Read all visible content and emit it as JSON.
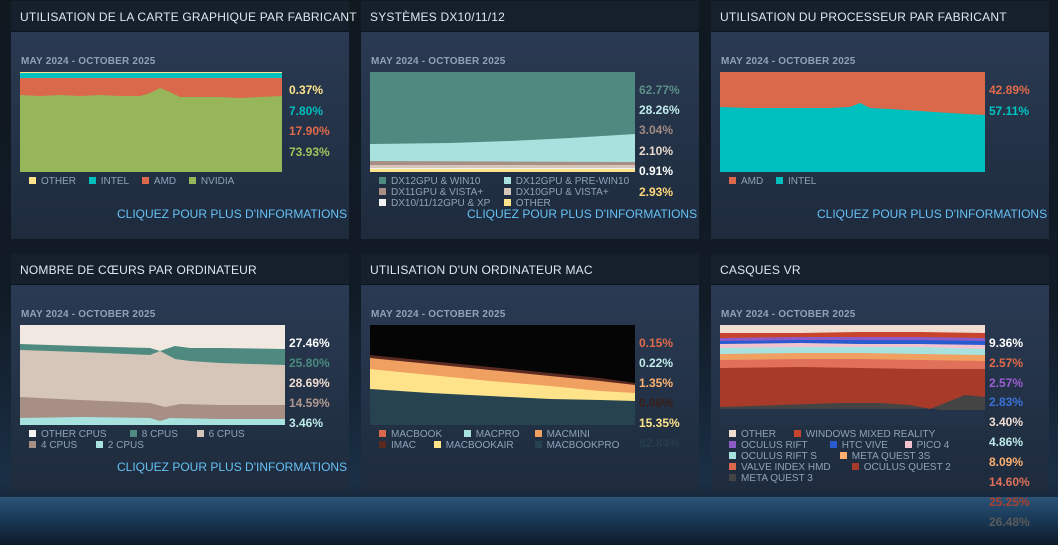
{
  "panels": [
    {
      "title": "UTILISATION DE LA CARTE GRAPHIQUE PAR FABRICANT",
      "period": "MAY 2024 - OCTOBER 2025",
      "more_link": "CLIQUEZ POUR PLUS D'INFORMATIONS",
      "values": [
        {
          "text": "0.37%",
          "color": "#ffe38a"
        },
        {
          "text": "7.80%",
          "color": "#00bfbf"
        },
        {
          "text": "17.90%",
          "color": "#e06a4a"
        },
        {
          "text": "73.93%",
          "color": "#a3c45c"
        }
      ],
      "legend": [
        {
          "label": "OTHER",
          "color": "#ffe38a"
        },
        {
          "label": "INTEL",
          "color": "#00bfbf"
        },
        {
          "label": "AMD",
          "color": "#d9694a"
        },
        {
          "label": "NVIDIA",
          "color": "#97b65a"
        }
      ]
    },
    {
      "title": "SYSTÈMES DX10/11/12",
      "period": "MAY 2024 - OCTOBER 2025",
      "more_link": "CLIQUEZ POUR PLUS D'INFORMATIONS",
      "values": [
        {
          "text": "62.77%",
          "color": "#5b8f88"
        },
        {
          "text": "28.26%",
          "color": "#bfeaea"
        },
        {
          "text": "3.04%",
          "color": "#a08a82"
        },
        {
          "text": "2.10%",
          "color": "#e8d8cc"
        },
        {
          "text": "0.91%",
          "color": "#ffffff"
        },
        {
          "text": "2.93%",
          "color": "#ffd77a"
        }
      ],
      "legend": [
        {
          "label": "DX12GPU & WIN10",
          "color": "#4f8a80"
        },
        {
          "label": "DX12GPU & PRE-WIN10",
          "color": "#a8e2df"
        },
        {
          "label": "DX11GPU & VISTA+",
          "color": "#a88f86"
        },
        {
          "label": "DX10GPU & VISTA+",
          "color": "#d6c6ba"
        },
        {
          "label": "DX10/11/12GPU & XP",
          "color": "#f2f2f2"
        },
        {
          "label": "OTHER",
          "color": "#ffe38a"
        }
      ]
    },
    {
      "title": "UTILISATION DU PROCESSEUR PAR FABRICANT",
      "period": "MAY 2024 - OCTOBER 2025",
      "more_link": "CLIQUEZ POUR PLUS D'INFORMATIONS",
      "values": [
        {
          "text": "42.89%",
          "color": "#e06a4a"
        },
        {
          "text": "57.11%",
          "color": "#00c4c0"
        }
      ],
      "legend": [
        {
          "label": "AMD",
          "color": "#d9694a"
        },
        {
          "label": "INTEL",
          "color": "#00bfbf"
        }
      ]
    },
    {
      "title": "NOMBRE DE CŒURS PAR ORDINATEUR",
      "period": "MAY 2024 - OCTOBER 2025",
      "more_link": "CLIQUEZ POUR PLUS D'INFORMATIONS",
      "values": [
        {
          "text": "27.46%",
          "color": "#ffffff"
        },
        {
          "text": "25.80%",
          "color": "#4a8a7e"
        },
        {
          "text": "28.69%",
          "color": "#f0ddd2"
        },
        {
          "text": "14.59%",
          "color": "#b09890"
        },
        {
          "text": "3.46%",
          "color": "#bfeaea"
        }
      ],
      "legend": [
        {
          "label": "OTHER CPUS",
          "color": "#f2f2f2"
        },
        {
          "label": "8 CPUS",
          "color": "#4f8a80"
        },
        {
          "label": "6 CPUS",
          "color": "#d6c6ba"
        },
        {
          "label": "4 CPUS",
          "color": "#a88f86"
        },
        {
          "label": "2 CPUS",
          "color": "#a8e2df"
        }
      ]
    },
    {
      "title": "UTILISATION D'UN ORDINATEUR MAC",
      "period": "MAY 2024 - OCTOBER 2025",
      "more_link": "",
      "values": [
        {
          "text": "0.15%",
          "color": "#e06a4a"
        },
        {
          "text": "0.22%",
          "color": "#bfeaea"
        },
        {
          "text": "1.35%",
          "color": "#ffb070"
        },
        {
          "text": "0.08%",
          "color": "#3a1e18"
        },
        {
          "text": "15.35%",
          "color": "#ffe38a"
        },
        {
          "text": "82.84%",
          "color": "#243e4a"
        }
      ],
      "legend": [
        {
          "label": "MACBOOK",
          "color": "#d9694a"
        },
        {
          "label": "MACPRO",
          "color": "#a8e2df"
        },
        {
          "label": "MACMINI",
          "color": "#f0a060"
        },
        {
          "label": "IMAC",
          "color": "#5a2a20"
        },
        {
          "label": "MACBOOKAIR",
          "color": "#ffe38a"
        },
        {
          "label": "MACBOOKPRO",
          "color": "#26434f"
        }
      ]
    },
    {
      "title": "CASQUES VR",
      "period": "MAY 2024 - OCTOBER 2025",
      "more_link": "",
      "values": [
        {
          "text": "9.36%",
          "color": "#ffffff"
        },
        {
          "text": "2.57%",
          "color": "#e06a4a"
        },
        {
          "text": "2.57%",
          "color": "#9a5fd0"
        },
        {
          "text": "2.83%",
          "color": "#3a70d8"
        },
        {
          "text": "3.40%",
          "color": "#f0ddd2"
        },
        {
          "text": "4.86%",
          "color": "#bfeaea"
        },
        {
          "text": "8.09%",
          "color": "#ffb070"
        },
        {
          "text": "14.60%",
          "color": "#e0705a"
        },
        {
          "text": "25.25%",
          "color": "#a84030"
        },
        {
          "text": "26.48%",
          "color": "#5a5a5a"
        }
      ],
      "legend": [
        {
          "label": "OTHER",
          "color": "#f0ddd2"
        },
        {
          "label": "WINDOWS MIXED REALITY",
          "color": "#c8442c"
        },
        {
          "label": "OCULUS RIFT",
          "color": "#8e5ac8"
        },
        {
          "label": "HTC VIVE",
          "color": "#2a5ad0"
        },
        {
          "label": "PICO 4",
          "color": "#f2c4d0"
        },
        {
          "label": "OCULUS RIFT S",
          "color": "#a8e2df"
        },
        {
          "label": "META QUEST 3S",
          "color": "#ffb070"
        },
        {
          "label": "VALVE INDEX HMD",
          "color": "#d9694a"
        },
        {
          "label": "OCULUS QUEST 2",
          "color": "#a83a2a"
        },
        {
          "label": "META QUEST 3",
          "color": "#444444"
        }
      ]
    }
  ]
}
